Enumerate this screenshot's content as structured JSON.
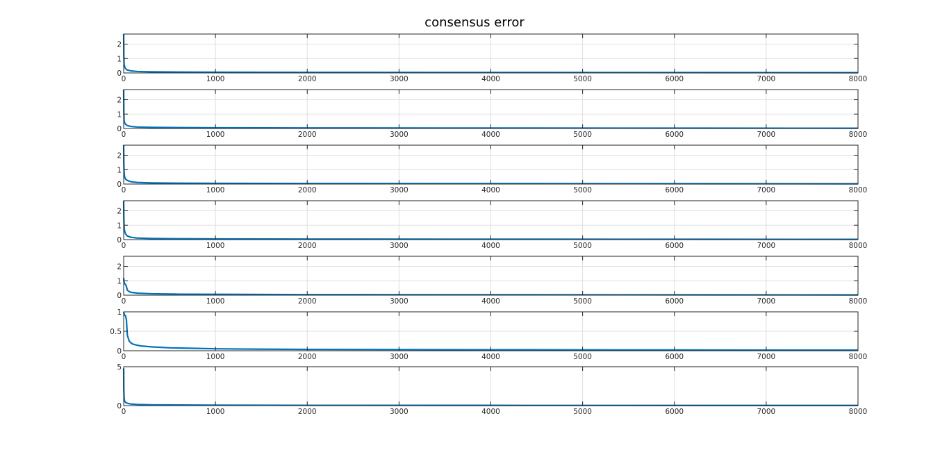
{
  "title": "consensus error",
  "colors": {
    "line": "#0072BD",
    "axis": "#262626",
    "grid": "#dfdfdf",
    "background": "#ffffff"
  },
  "chart_data": [
    {
      "type": "line",
      "xlim": [
        0,
        8000
      ],
      "ylim": [
        0,
        2.7
      ],
      "grid": true,
      "xticks": [
        0,
        1000,
        2000,
        3000,
        4000,
        5000,
        6000,
        7000,
        8000
      ],
      "xtick_labels": [
        "0",
        "1000",
        "2000",
        "3000",
        "4000",
        "5000",
        "6000",
        "7000",
        "8000"
      ],
      "yticks": [
        0,
        1,
        2
      ],
      "ytick_labels": [
        "0",
        "1",
        "2"
      ],
      "series": [
        {
          "x": [
            0,
            2,
            5,
            10,
            20,
            40,
            80,
            150,
            300,
            600,
            1000,
            2000,
            4000,
            8000
          ],
          "y": [
            2.7,
            1.2,
            0.6,
            0.45,
            0.3,
            0.2,
            0.14,
            0.1,
            0.08,
            0.06,
            0.05,
            0.04,
            0.03,
            0.02
          ]
        }
      ]
    },
    {
      "type": "line",
      "xlim": [
        0,
        8000
      ],
      "ylim": [
        0,
        2.7
      ],
      "grid": true,
      "xticks": [
        0,
        1000,
        2000,
        3000,
        4000,
        5000,
        6000,
        7000,
        8000
      ],
      "xtick_labels": [
        "0",
        "1000",
        "2000",
        "3000",
        "4000",
        "5000",
        "6000",
        "7000",
        "8000"
      ],
      "yticks": [
        0,
        1,
        2
      ],
      "ytick_labels": [
        "0",
        "1",
        "2"
      ],
      "series": [
        {
          "x": [
            0,
            2,
            5,
            10,
            20,
            40,
            80,
            150,
            300,
            600,
            1000,
            2000,
            4000,
            8000
          ],
          "y": [
            2.7,
            1.1,
            0.55,
            0.4,
            0.3,
            0.2,
            0.14,
            0.1,
            0.08,
            0.06,
            0.05,
            0.04,
            0.03,
            0.02
          ]
        }
      ]
    },
    {
      "type": "line",
      "xlim": [
        0,
        8000
      ],
      "ylim": [
        0,
        2.7
      ],
      "grid": true,
      "xticks": [
        0,
        1000,
        2000,
        3000,
        4000,
        5000,
        6000,
        7000,
        8000
      ],
      "xtick_labels": [
        "0",
        "1000",
        "2000",
        "3000",
        "4000",
        "5000",
        "6000",
        "7000",
        "8000"
      ],
      "yticks": [
        0,
        1,
        2
      ],
      "ytick_labels": [
        "0",
        "1",
        "2"
      ],
      "series": [
        {
          "x": [
            0,
            2,
            5,
            10,
            20,
            40,
            80,
            150,
            300,
            600,
            1000,
            2000,
            4000,
            8000
          ],
          "y": [
            2.7,
            1.4,
            0.8,
            0.5,
            0.35,
            0.25,
            0.16,
            0.11,
            0.08,
            0.06,
            0.05,
            0.04,
            0.03,
            0.02
          ]
        }
      ]
    },
    {
      "type": "line",
      "xlim": [
        0,
        8000
      ],
      "ylim": [
        0,
        2.7
      ],
      "grid": true,
      "xticks": [
        0,
        1000,
        2000,
        3000,
        4000,
        5000,
        6000,
        7000,
        8000
      ],
      "xtick_labels": [
        "0",
        "1000",
        "2000",
        "3000",
        "4000",
        "5000",
        "6000",
        "7000",
        "8000"
      ],
      "yticks": [
        0,
        1,
        2
      ],
      "ytick_labels": [
        "0",
        "1",
        "2"
      ],
      "series": [
        {
          "x": [
            0,
            2,
            5,
            10,
            20,
            40,
            80,
            150,
            300,
            600,
            1000,
            2000,
            4000,
            8000
          ],
          "y": [
            2.7,
            1.5,
            0.9,
            0.6,
            0.4,
            0.25,
            0.16,
            0.11,
            0.08,
            0.06,
            0.05,
            0.04,
            0.03,
            0.02
          ]
        }
      ]
    },
    {
      "type": "line",
      "xlim": [
        0,
        8000
      ],
      "ylim": [
        0,
        2.7
      ],
      "grid": true,
      "xticks": [
        0,
        1000,
        2000,
        3000,
        4000,
        5000,
        6000,
        7000,
        8000
      ],
      "xtick_labels": [
        "0",
        "1000",
        "2000",
        "3000",
        "4000",
        "5000",
        "6000",
        "7000",
        "8000"
      ],
      "yticks": [
        0,
        1,
        2
      ],
      "ytick_labels": [
        "0",
        "1",
        "2"
      ],
      "series": [
        {
          "x": [
            0,
            2,
            5,
            10,
            20,
            30,
            40,
            60,
            80,
            150,
            300,
            600,
            1000,
            2000,
            4000,
            8000
          ],
          "y": [
            1.2,
            1.0,
            0.9,
            0.8,
            0.75,
            0.6,
            0.35,
            0.25,
            0.2,
            0.14,
            0.1,
            0.07,
            0.06,
            0.04,
            0.03,
            0.02
          ]
        }
      ]
    },
    {
      "type": "line",
      "xlim": [
        0,
        8000
      ],
      "ylim": [
        0,
        1
      ],
      "grid": true,
      "xticks": [
        0,
        1000,
        2000,
        3000,
        4000,
        5000,
        6000,
        7000,
        8000
      ],
      "xtick_labels": [
        "0",
        "1000",
        "2000",
        "3000",
        "4000",
        "5000",
        "6000",
        "7000",
        "8000"
      ],
      "yticks": [
        0,
        0.5,
        1
      ],
      "ytick_labels": [
        "0",
        "0.5",
        "1"
      ],
      "series": [
        {
          "x": [
            0,
            2,
            5,
            10,
            20,
            30,
            40,
            60,
            80,
            100,
            150,
            200,
            300,
            500,
            800,
            1000,
            1500,
            2000,
            3000,
            4000,
            6000,
            8000
          ],
          "y": [
            1.0,
            0.98,
            0.95,
            0.92,
            0.9,
            0.8,
            0.4,
            0.25,
            0.2,
            0.17,
            0.14,
            0.12,
            0.1,
            0.075,
            0.06,
            0.05,
            0.04,
            0.035,
            0.03,
            0.025,
            0.02,
            0.015
          ]
        }
      ]
    },
    {
      "type": "line",
      "xlim": [
        0,
        8000
      ],
      "ylim": [
        0,
        5
      ],
      "grid": true,
      "xticks": [
        0,
        1000,
        2000,
        3000,
        4000,
        5000,
        6000,
        7000,
        8000
      ],
      "xtick_labels": [
        "0",
        "1000",
        "2000",
        "3000",
        "4000",
        "5000",
        "6000",
        "7000",
        "8000"
      ],
      "yticks": [
        0,
        5
      ],
      "ytick_labels": [
        "0",
        "5"
      ],
      "series": [
        {
          "x": [
            0,
            2,
            5,
            10,
            20,
            40,
            80,
            150,
            300,
            600,
            1000,
            2000,
            4000,
            8000
          ],
          "y": [
            4.8,
            2.0,
            1.0,
            0.6,
            0.4,
            0.3,
            0.2,
            0.15,
            0.1,
            0.08,
            0.06,
            0.04,
            0.03,
            0.02
          ]
        }
      ]
    }
  ]
}
